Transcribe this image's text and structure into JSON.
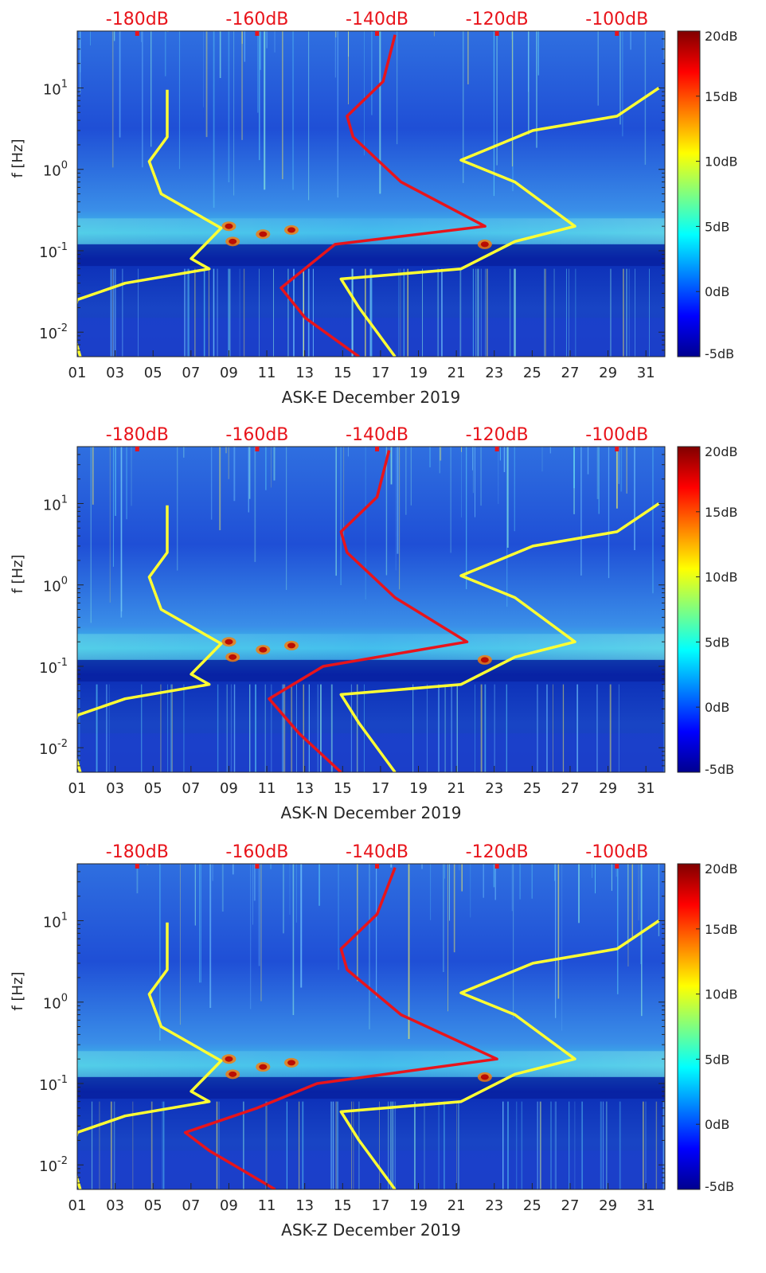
{
  "chart_data": [
    {
      "type": "heatmap",
      "xlabel": "ASK-E December 2019",
      "ylabel": "f [Hz]",
      "x_ticks": [
        "01",
        "03",
        "05",
        "07",
        "09",
        "11",
        "13",
        "15",
        "17",
        "19",
        "21",
        "23",
        "25",
        "27",
        "29",
        "31"
      ],
      "x_range_days": [
        1,
        32
      ],
      "y_scale": "log",
      "y_range_hz": [
        0.005,
        50
      ],
      "y_ticks": [
        {
          "base": "10",
          "exp": "-2",
          "value": 0.01
        },
        {
          "base": "10",
          "exp": "-1",
          "value": 0.1
        },
        {
          "base": "10",
          "exp": "0",
          "value": 1
        },
        {
          "base": "10",
          "exp": "1",
          "value": 10
        }
      ],
      "top_axis_ticks": [
        "-180dB",
        "-160dB",
        "-140dB",
        "-120dB",
        "-100dB"
      ],
      "top_axis_range_db": [
        -190,
        -92
      ],
      "colorbar": {
        "ticks": [
          "20dB",
          "15dB",
          "10dB",
          "5dB",
          "0dB",
          "-5dB"
        ],
        "range_db": [
          -5,
          20
        ],
        "colormap": "jet"
      },
      "overlay_lines": [
        {
          "color": "#ffff33",
          "points": [
            [
              -189.5,
              0.005
            ],
            [
              -191,
              0.012
            ],
            [
              -190,
              0.025
            ],
            [
              -182,
              0.04
            ],
            [
              -168,
              0.06
            ],
            [
              -171,
              0.08
            ],
            [
              -166,
              0.19
            ],
            [
              -176,
              0.5
            ],
            [
              -178,
              1.25
            ],
            [
              -175,
              2.5
            ],
            [
              -175,
              9.5
            ]
          ]
        },
        {
          "color": "#e8141b",
          "points": [
            [
              -143,
              0.005
            ],
            [
              -152,
              0.015
            ],
            [
              -156,
              0.035
            ],
            [
              -147,
              0.12
            ],
            [
              -122,
              0.2
            ],
            [
              -136,
              0.7
            ],
            [
              -144,
              2.5
            ],
            [
              -145,
              4.5
            ],
            [
              -139,
              12
            ],
            [
              -137,
              45
            ]
          ]
        },
        {
          "color": "#ffff33",
          "points": [
            [
              -137,
              0.005
            ],
            [
              -143,
              0.02
            ],
            [
              -146,
              0.045
            ],
            [
              -126,
              0.06
            ],
            [
              -117,
              0.13
            ],
            [
              -107,
              0.2
            ],
            [
              -117,
              0.7
            ],
            [
              -126,
              1.3
            ],
            [
              -114,
              3
            ],
            [
              -100,
              4.5
            ],
            [
              -93,
              10
            ]
          ]
        }
      ]
    },
    {
      "type": "heatmap",
      "xlabel": "ASK-N December 2019",
      "ylabel": "f [Hz]",
      "x_ticks": [
        "01",
        "03",
        "05",
        "07",
        "09",
        "11",
        "13",
        "15",
        "17",
        "19",
        "21",
        "23",
        "25",
        "27",
        "29",
        "31"
      ],
      "x_range_days": [
        1,
        32
      ],
      "y_scale": "log",
      "y_range_hz": [
        0.005,
        50
      ],
      "y_ticks": [
        {
          "base": "10",
          "exp": "-2",
          "value": 0.01
        },
        {
          "base": "10",
          "exp": "-1",
          "value": 0.1
        },
        {
          "base": "10",
          "exp": "0",
          "value": 1
        },
        {
          "base": "10",
          "exp": "1",
          "value": 10
        }
      ],
      "top_axis_ticks": [
        "-180dB",
        "-160dB",
        "-140dB",
        "-120dB",
        "-100dB"
      ],
      "top_axis_range_db": [
        -190,
        -92
      ],
      "colorbar": {
        "ticks": [
          "20dB",
          "15dB",
          "10dB",
          "5dB",
          "0dB",
          "-5dB"
        ],
        "range_db": [
          -5,
          20
        ],
        "colormap": "jet"
      },
      "overlay_lines": [
        {
          "color": "#ffff33",
          "points": [
            [
              -189.5,
              0.005
            ],
            [
              -191,
              0.012
            ],
            [
              -190,
              0.025
            ],
            [
              -182,
              0.04
            ],
            [
              -168,
              0.06
            ],
            [
              -171,
              0.08
            ],
            [
              -166,
              0.19
            ],
            [
              -176,
              0.5
            ],
            [
              -178,
              1.25
            ],
            [
              -175,
              2.5
            ],
            [
              -175,
              9.5
            ]
          ]
        },
        {
          "color": "#e8141b",
          "points": [
            [
              -146,
              0.005
            ],
            [
              -153,
              0.015
            ],
            [
              -158,
              0.04
            ],
            [
              -149,
              0.1
            ],
            [
              -125,
              0.2
            ],
            [
              -137,
              0.7
            ],
            [
              -145,
              2.5
            ],
            [
              -146,
              4.5
            ],
            [
              -140,
              12
            ],
            [
              -138,
              45
            ]
          ]
        },
        {
          "color": "#ffff33",
          "points": [
            [
              -137,
              0.005
            ],
            [
              -143,
              0.02
            ],
            [
              -146,
              0.045
            ],
            [
              -126,
              0.06
            ],
            [
              -117,
              0.13
            ],
            [
              -107,
              0.2
            ],
            [
              -117,
              0.7
            ],
            [
              -126,
              1.3
            ],
            [
              -114,
              3
            ],
            [
              -100,
              4.5
            ],
            [
              -93,
              10
            ]
          ]
        }
      ]
    },
    {
      "type": "heatmap",
      "xlabel": "ASK-Z December 2019",
      "ylabel": "f [Hz]",
      "x_ticks": [
        "01",
        "03",
        "05",
        "07",
        "09",
        "11",
        "13",
        "15",
        "17",
        "19",
        "21",
        "23",
        "25",
        "27",
        "29",
        "31"
      ],
      "x_range_days": [
        1,
        32
      ],
      "y_scale": "log",
      "y_range_hz": [
        0.005,
        50
      ],
      "y_ticks": [
        {
          "base": "10",
          "exp": "-2",
          "value": 0.01
        },
        {
          "base": "10",
          "exp": "-1",
          "value": 0.1
        },
        {
          "base": "10",
          "exp": "0",
          "value": 1
        },
        {
          "base": "10",
          "exp": "1",
          "value": 10
        }
      ],
      "top_axis_ticks": [
        "-180dB",
        "-160dB",
        "-140dB",
        "-120dB",
        "-100dB"
      ],
      "top_axis_range_db": [
        -190,
        -92
      ],
      "colorbar": {
        "ticks": [
          "20dB",
          "15dB",
          "10dB",
          "5dB",
          "0dB",
          "-5dB"
        ],
        "range_db": [
          -5,
          20
        ],
        "colormap": "jet"
      },
      "overlay_lines": [
        {
          "color": "#ffff33",
          "points": [
            [
              -189.5,
              0.005
            ],
            [
              -191,
              0.012
            ],
            [
              -190,
              0.025
            ],
            [
              -182,
              0.04
            ],
            [
              -168,
              0.06
            ],
            [
              -171,
              0.08
            ],
            [
              -166,
              0.19
            ],
            [
              -176,
              0.5
            ],
            [
              -178,
              1.25
            ],
            [
              -175,
              2.5
            ],
            [
              -175,
              9.5
            ]
          ]
        },
        {
          "color": "#e8141b",
          "points": [
            [
              -157,
              0.005
            ],
            [
              -168,
              0.015
            ],
            [
              -172,
              0.025
            ],
            [
              -160,
              0.05
            ],
            [
              -150,
              0.1
            ],
            [
              -120,
              0.2
            ],
            [
              -136,
              0.7
            ],
            [
              -145,
              2.5
            ],
            [
              -146,
              4.5
            ],
            [
              -140,
              12
            ],
            [
              -137,
              45
            ]
          ]
        },
        {
          "color": "#ffff33",
          "points": [
            [
              -137,
              0.005
            ],
            [
              -143,
              0.02
            ],
            [
              -146,
              0.045
            ],
            [
              -126,
              0.06
            ],
            [
              -117,
              0.13
            ],
            [
              -107,
              0.2
            ],
            [
              -117,
              0.7
            ],
            [
              -126,
              1.3
            ],
            [
              -114,
              3
            ],
            [
              -100,
              4.5
            ],
            [
              -93,
              10
            ]
          ]
        }
      ]
    }
  ]
}
